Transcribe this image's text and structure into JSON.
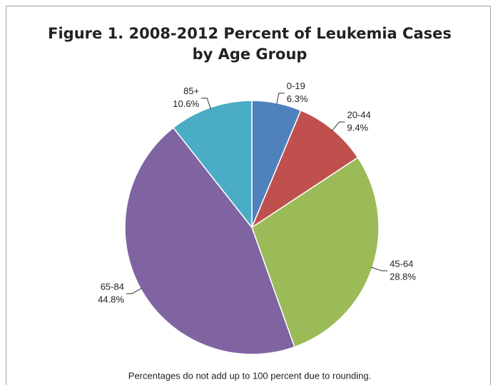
{
  "chart_data": {
    "type": "pie",
    "title": [
      "Figure 1.  2008-2012 Percent of Leukemia Cases",
      "by Age Group"
    ],
    "categories": [
      "0-19",
      "20-44",
      "45-64",
      "65-84",
      "85+"
    ],
    "values": [
      6.3,
      9.4,
      28.8,
      44.8,
      10.6
    ],
    "value_labels": [
      "6.3%",
      "9.4%",
      "28.8%",
      "44.8%",
      "10.6%"
    ],
    "colors": [
      "#4f81bd",
      "#c0504d",
      "#9bbb59",
      "#8064a2",
      "#4bacc6"
    ],
    "footnote": "Percentages do not add up to 100 percent due to rounding."
  }
}
